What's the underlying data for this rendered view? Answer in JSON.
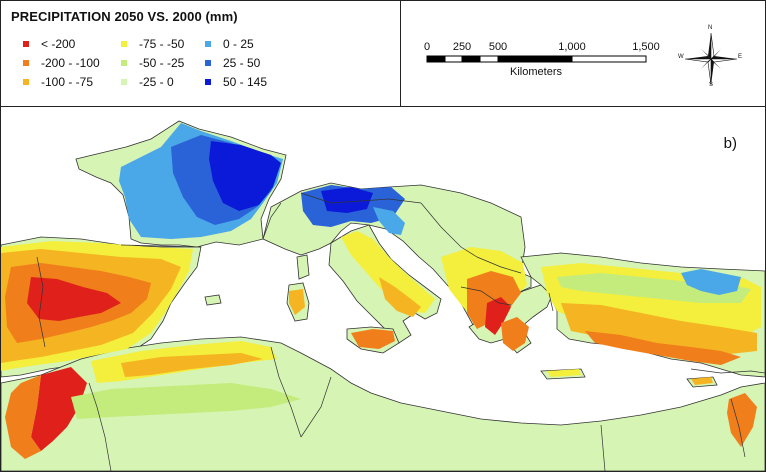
{
  "legend": {
    "title": "PRECIPITATION 2050 VS. 2000 (mm)",
    "classes": [
      {
        "label": "< -200",
        "color": "#e0201a"
      },
      {
        "label": "-200 - -100",
        "color": "#f07e1a"
      },
      {
        "label": "-100 - -75",
        "color": "#f5b421"
      },
      {
        "label": "-75 - -50",
        "color": "#f3ef3c"
      },
      {
        "label": "-50 - -25",
        "color": "#c4ec7c"
      },
      {
        "label": "-25 - 0",
        "color": "#d6f4b4"
      },
      {
        "label": "0 - 25",
        "color": "#4aa7e8"
      },
      {
        "label": "25 - 50",
        "color": "#2a63d8"
      },
      {
        "label": "50 - 145",
        "color": "#0b1ad8"
      }
    ]
  },
  "scale_bar": {
    "ticks": [
      "0",
      "250",
      "500",
      "1,000",
      "1,500"
    ],
    "unit": "Kilometers"
  },
  "north_arrow": {
    "icon": "compass-rose-icon",
    "directions": {
      "n": "N",
      "s": "S",
      "e": "E",
      "w": "W"
    }
  },
  "map": {
    "panel_label": "b)",
    "colors": {
      "sea": "#ffffff",
      "land_base": "#d6f4b4",
      "border": "#333333"
    }
  }
}
